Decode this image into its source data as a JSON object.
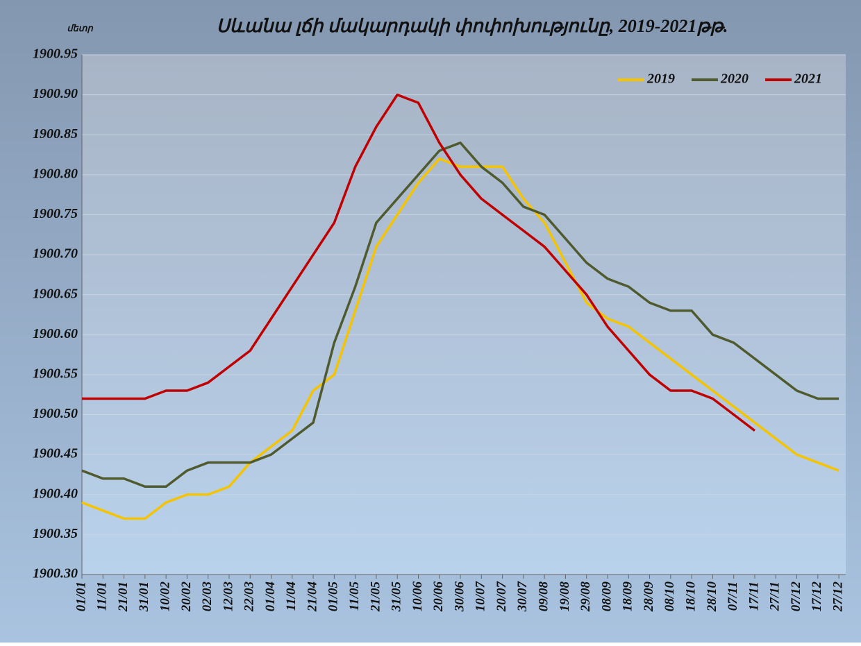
{
  "chart_data": {
    "type": "line",
    "title": "Սևանա լճի մակարդակի փոփոխությունը, 2019-2021թթ.",
    "y_label": "մետր",
    "categories": [
      "01/01",
      "11/01",
      "21/01",
      "31/01",
      "10/02",
      "20/02",
      "02/03",
      "12/03",
      "22/03",
      "01/04",
      "11/04",
      "21/04",
      "01/05",
      "11/05",
      "21/05",
      "31/05",
      "10/06",
      "20/06",
      "30/06",
      "10/07",
      "20/07",
      "30/07",
      "09/08",
      "19/08",
      "29/08",
      "08/09",
      "18/09",
      "28/09",
      "08/10",
      "18/10",
      "28/10",
      "07/11",
      "17/11",
      "27/11",
      "07/12",
      "17/12",
      "27/12"
    ],
    "series": [
      {
        "name": "2019",
        "color": "#f5c400",
        "values": [
          1900.39,
          1900.38,
          1900.37,
          1900.37,
          1900.39,
          1900.4,
          1900.4,
          1900.41,
          1900.44,
          1900.46,
          1900.48,
          1900.53,
          1900.55,
          1900.63,
          1900.71,
          1900.75,
          1900.79,
          1900.82,
          1900.81,
          1900.81,
          1900.81,
          1900.77,
          1900.74,
          1900.69,
          1900.64,
          1900.62,
          1900.61,
          1900.59,
          1900.57,
          1900.55,
          1900.53,
          1900.51,
          1900.49,
          1900.47,
          1900.45,
          1900.44,
          1900.43
        ]
      },
      {
        "name": "2020",
        "color": "#4f5a2e",
        "values": [
          1900.43,
          1900.42,
          1900.42,
          1900.41,
          1900.41,
          1900.43,
          1900.44,
          1900.44,
          1900.44,
          1900.45,
          1900.47,
          1900.49,
          1900.59,
          1900.66,
          1900.74,
          1900.77,
          1900.8,
          1900.83,
          1900.84,
          1900.81,
          1900.79,
          1900.76,
          1900.75,
          1900.72,
          1900.69,
          1900.67,
          1900.66,
          1900.64,
          1900.63,
          1900.63,
          1900.6,
          1900.59,
          1900.57,
          1900.55,
          1900.53,
          1900.52,
          1900.52
        ]
      },
      {
        "name": "2021",
        "color": "#c00000",
        "values": [
          1900.52,
          1900.52,
          1900.52,
          1900.52,
          1900.53,
          1900.53,
          1900.54,
          1900.56,
          1900.58,
          1900.62,
          1900.66,
          1900.7,
          1900.74,
          1900.81,
          1900.86,
          1900.9,
          1900.89,
          1900.84,
          1900.8,
          1900.77,
          1900.75,
          1900.73,
          1900.71,
          1900.68,
          1900.65,
          1900.61,
          1900.58,
          1900.55,
          1900.53,
          1900.53,
          1900.52,
          1900.5,
          1900.48,
          null,
          null,
          null,
          null
        ]
      }
    ],
    "ylim": [
      1900.3,
      1900.95
    ],
    "yticks": [
      {
        "value": 1900.3,
        "label": "1900.30"
      },
      1900.35,
      {
        "value": 1900.4,
        "label": "1900.40"
      },
      1900.45,
      {
        "value": 1900.5,
        "label": "1900.50"
      },
      1900.55,
      {
        "value": 1900.6,
        "label": "1900.60"
      },
      1900.65,
      {
        "value": 1900.7,
        "label": "1900.70"
      },
      1900.75,
      {
        "value": 1900.8,
        "label": "1900.80"
      },
      1900.85,
      {
        "value": 1900.9,
        "label": "1900.90"
      },
      1900.95
    ],
    "grid": true,
    "legend": "top-right"
  }
}
